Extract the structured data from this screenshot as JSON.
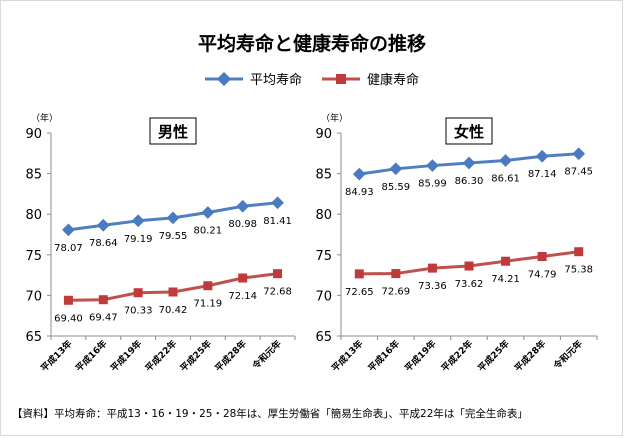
{
  "colors": {
    "avg": "#4f7fc1",
    "avg_marker": "#4a7ac0",
    "healthy": "#c0504d",
    "healthy_marker": "#c0393b",
    "axis": "#8c8c8c",
    "text": "#000000"
  },
  "chart_data": {
    "type": "line",
    "title": "平均寿命と健康寿命の推移",
    "source": "【資料】平均寿命：平成13・16・19・25・28年は、厚生労働省「簡易生命表」、平成22年は「完全生命表」",
    "legend": {
      "position": "top-center",
      "items": [
        "平均寿命",
        "健康寿命"
      ]
    },
    "panels": [
      {
        "label": "男性",
        "unit": "（年）",
        "categories": [
          "平成13年",
          "平成16年",
          "平成19年",
          "平成22年",
          "平成25年",
          "平成28年",
          "令和元年"
        ],
        "ylim": [
          65,
          90
        ],
        "yticks": [
          65,
          70,
          75,
          80,
          85,
          90
        ],
        "series": [
          {
            "name": "平均寿命",
            "values": [
              78.07,
              78.64,
              79.19,
              79.55,
              80.21,
              80.98,
              81.41
            ],
            "labels": [
              "78.07",
              "78.64",
              "79.19",
              "79.55",
              "80.21",
              "80.98",
              "81.41"
            ]
          },
          {
            "name": "健康寿命",
            "values": [
              69.4,
              69.47,
              70.33,
              70.42,
              71.19,
              72.14,
              72.68
            ],
            "labels": [
              "69.40",
              "69.47",
              "70.33",
              "70.42",
              "71.19",
              "72.14",
              "72.68"
            ]
          }
        ]
      },
      {
        "label": "女性",
        "unit": "（年）",
        "categories": [
          "平成13年",
          "平成16年",
          "平成19年",
          "平成22年",
          "平成25年",
          "平成28年",
          "令和元年"
        ],
        "ylim": [
          65,
          90
        ],
        "yticks": [
          65,
          70,
          75,
          80,
          85,
          90
        ],
        "series": [
          {
            "name": "平均寿命",
            "values": [
              84.93,
              85.59,
              85.99,
              86.3,
              86.61,
              87.14,
              87.45
            ],
            "labels": [
              "84.93",
              "85.59",
              "85.99",
              "86.30",
              "86.61",
              "87.14",
              "87.45"
            ]
          },
          {
            "name": "健康寿命",
            "values": [
              72.65,
              72.69,
              73.36,
              73.62,
              74.21,
              74.79,
              75.38
            ],
            "labels": [
              "72.65",
              "72.69",
              "73.36",
              "73.62",
              "74.21",
              "74.79",
              "75.38"
            ]
          }
        ]
      }
    ]
  }
}
